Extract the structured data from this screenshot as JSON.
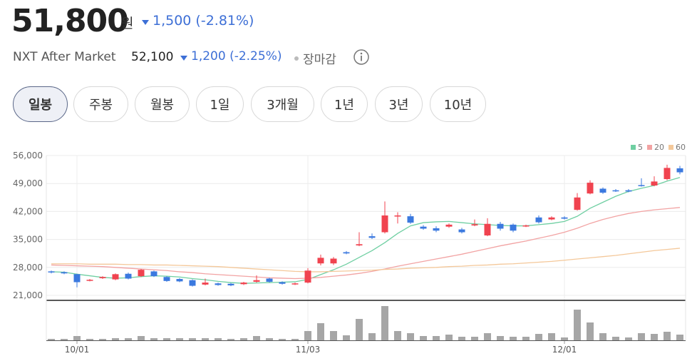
{
  "header": {
    "price": "51,800",
    "unit": "원",
    "change": "1,500 (-2.81%)",
    "market": "NXT After Market",
    "market_price": "52,100",
    "market_change": "1,200 (-2.25%)",
    "status": "장마감"
  },
  "tabs": [
    "일봉",
    "주봉",
    "월봉",
    "1일",
    "3개월",
    "1년",
    "3년",
    "10년"
  ],
  "chart_data": {
    "type": "candlestick",
    "categories": [
      null,
      null,
      "10/01",
      null,
      null,
      null,
      null,
      null,
      null,
      null,
      null,
      null,
      null,
      null,
      null,
      null,
      null,
      null,
      null,
      null,
      "11/03",
      null,
      null,
      null,
      null,
      null,
      null,
      null,
      null,
      null,
      null,
      null,
      null,
      null,
      null,
      null,
      null,
      null,
      null,
      null,
      "12/01",
      null,
      null,
      null,
      null,
      null,
      null,
      null,
      null,
      null
    ],
    "open": [
      27000,
      26800,
      26300,
      24700,
      25300,
      25000,
      26400,
      25800,
      27000,
      25600,
      25100,
      24800,
      23700,
      24000,
      23900,
      23800,
      24400,
      25200,
      24300,
      23800,
      24200,
      29000,
      29000,
      31800,
      33500,
      35800,
      36800,
      41000,
      40800,
      38200,
      37800,
      38200,
      37500,
      38500,
      36000,
      38900,
      38700,
      38300,
      40500,
      40000,
      40500,
      42400,
      46500,
      47700,
      47300,
      47300,
      48600,
      48500,
      50100,
      52800
    ],
    "high": [
      27200,
      27000,
      26400,
      25100,
      25800,
      26500,
      26700,
      27600,
      27200,
      25800,
      25300,
      25000,
      25200,
      24200,
      24100,
      24400,
      26000,
      25400,
      24500,
      24200,
      27800,
      31200,
      30600,
      32100,
      36800,
      36500,
      44500,
      41800,
      41400,
      38600,
      38300,
      39000,
      37900,
      40000,
      40300,
      39400,
      39000,
      38700,
      41000,
      40800,
      40800,
      46600,
      49800,
      48000,
      47600,
      47600,
      50300,
      50800,
      53700,
      53400
    ],
    "low": [
      26500,
      26300,
      23000,
      24500,
      25100,
      24800,
      25000,
      25600,
      25600,
      24400,
      24300,
      23200,
      23500,
      23400,
      23300,
      23600,
      24200,
      24200,
      23700,
      23600,
      24000,
      28500,
      28600,
      31300,
      33300,
      35100,
      36500,
      39000,
      38900,
      37400,
      36800,
      37900,
      36500,
      38300,
      35800,
      37200,
      36800,
      38100,
      39000,
      39800,
      40000,
      42200,
      46300,
      46400,
      46900,
      46800,
      48200,
      48300,
      49800,
      51300
    ],
    "close": [
      26800,
      26500,
      24300,
      24900,
      25600,
      26300,
      25200,
      27400,
      25800,
      24600,
      24500,
      23400,
      24200,
      23600,
      23500,
      24200,
      24800,
      24400,
      23900,
      24000,
      27200,
      30400,
      30200,
      31500,
      33800,
      35400,
      41000,
      41000,
      39200,
      37700,
      37200,
      38700,
      36800,
      38800,
      38900,
      37700,
      37200,
      38500,
      39300,
      40500,
      40200,
      45500,
      49200,
      46700,
      47200,
      47000,
      48400,
      49500,
      52900,
      51800
    ],
    "up_color": "#f0434f",
    "down_color": "#3b79df",
    "volume": [
      2,
      2,
      6,
      2,
      2,
      3,
      3,
      6,
      3,
      3,
      3,
      3,
      3,
      3,
      2,
      3,
      6,
      3,
      2,
      2,
      13,
      24,
      13,
      7,
      30,
      10,
      48,
      13,
      10,
      6,
      6,
      8,
      5,
      5,
      10,
      6,
      5,
      5,
      9,
      10,
      4,
      43,
      25,
      10,
      5,
      4,
      10,
      9,
      12,
      8
    ],
    "volume_color": "#a6a6a6",
    "vlim": [
      0,
      50
    ],
    "series": [
      {
        "name": "5",
        "color": "#6fcfa2",
        "values": [
          26900,
          26800,
          26300,
          25900,
          25500,
          25300,
          25400,
          25700,
          25900,
          25800,
          25600,
          25200,
          24900,
          24500,
          24200,
          24000,
          24100,
          24200,
          24300,
          24400,
          25000,
          26200,
          27400,
          28800,
          30500,
          32200,
          34200,
          36500,
          38400,
          39200,
          39400,
          39500,
          39200,
          38900,
          38700,
          38500,
          38400,
          38400,
          38700,
          39000,
          39500,
          40800,
          42800,
          44300,
          45800,
          47000,
          47800,
          48500,
          49600,
          50500
        ]
      },
      {
        "name": "20",
        "color": "#f2a3a3",
        "values": [
          28600,
          28500,
          28400,
          28300,
          28200,
          28000,
          27800,
          27600,
          27400,
          27200,
          26900,
          26700,
          26400,
          26200,
          26000,
          25800,
          25600,
          25400,
          25300,
          25200,
          25300,
          25500,
          25800,
          26100,
          26500,
          27000,
          27600,
          28300,
          28900,
          29500,
          30100,
          30700,
          31300,
          32000,
          32700,
          33400,
          34000,
          34600,
          35300,
          36000,
          36800,
          37800,
          39000,
          40000,
          40800,
          41500,
          42000,
          42400,
          42700,
          43000
        ]
      },
      {
        "name": "60",
        "color": "#f4c89a",
        "values": [
          28900,
          28900,
          28900,
          28800,
          28800,
          28800,
          28700,
          28700,
          28600,
          28600,
          28500,
          28400,
          28300,
          28200,
          28000,
          27800,
          27600,
          27400,
          27200,
          27000,
          26900,
          26900,
          27000,
          27100,
          27200,
          27300,
          27500,
          27600,
          27800,
          27900,
          28000,
          28200,
          28300,
          28500,
          28600,
          28800,
          28900,
          29100,
          29300,
          29500,
          29800,
          30100,
          30400,
          30700,
          31000,
          31400,
          31800,
          32200,
          32500,
          32800
        ]
      }
    ],
    "ylim": [
      21000,
      56000
    ],
    "yticks": [
      {
        "value": 21000,
        "label": "21,000"
      },
      {
        "value": 28000,
        "label": "28,000"
      },
      {
        "value": 35000,
        "label": "35,000"
      },
      {
        "value": 42000,
        "label": "42,000"
      },
      {
        "value": 49000,
        "label": "49,000"
      },
      {
        "value": 56000,
        "label": "56,000"
      }
    ],
    "grid": true,
    "legend": "top-right"
  }
}
